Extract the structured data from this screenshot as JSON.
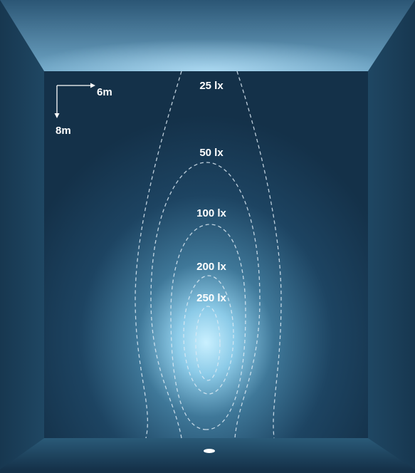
{
  "dimensions": {
    "width_label": "6m",
    "depth_label": "8m"
  },
  "contours": [
    {
      "label": "25 lx"
    },
    {
      "label": "50 lx"
    },
    {
      "label": "100 lx"
    },
    {
      "label": "200 lx"
    },
    {
      "label": "250 lx"
    }
  ]
}
